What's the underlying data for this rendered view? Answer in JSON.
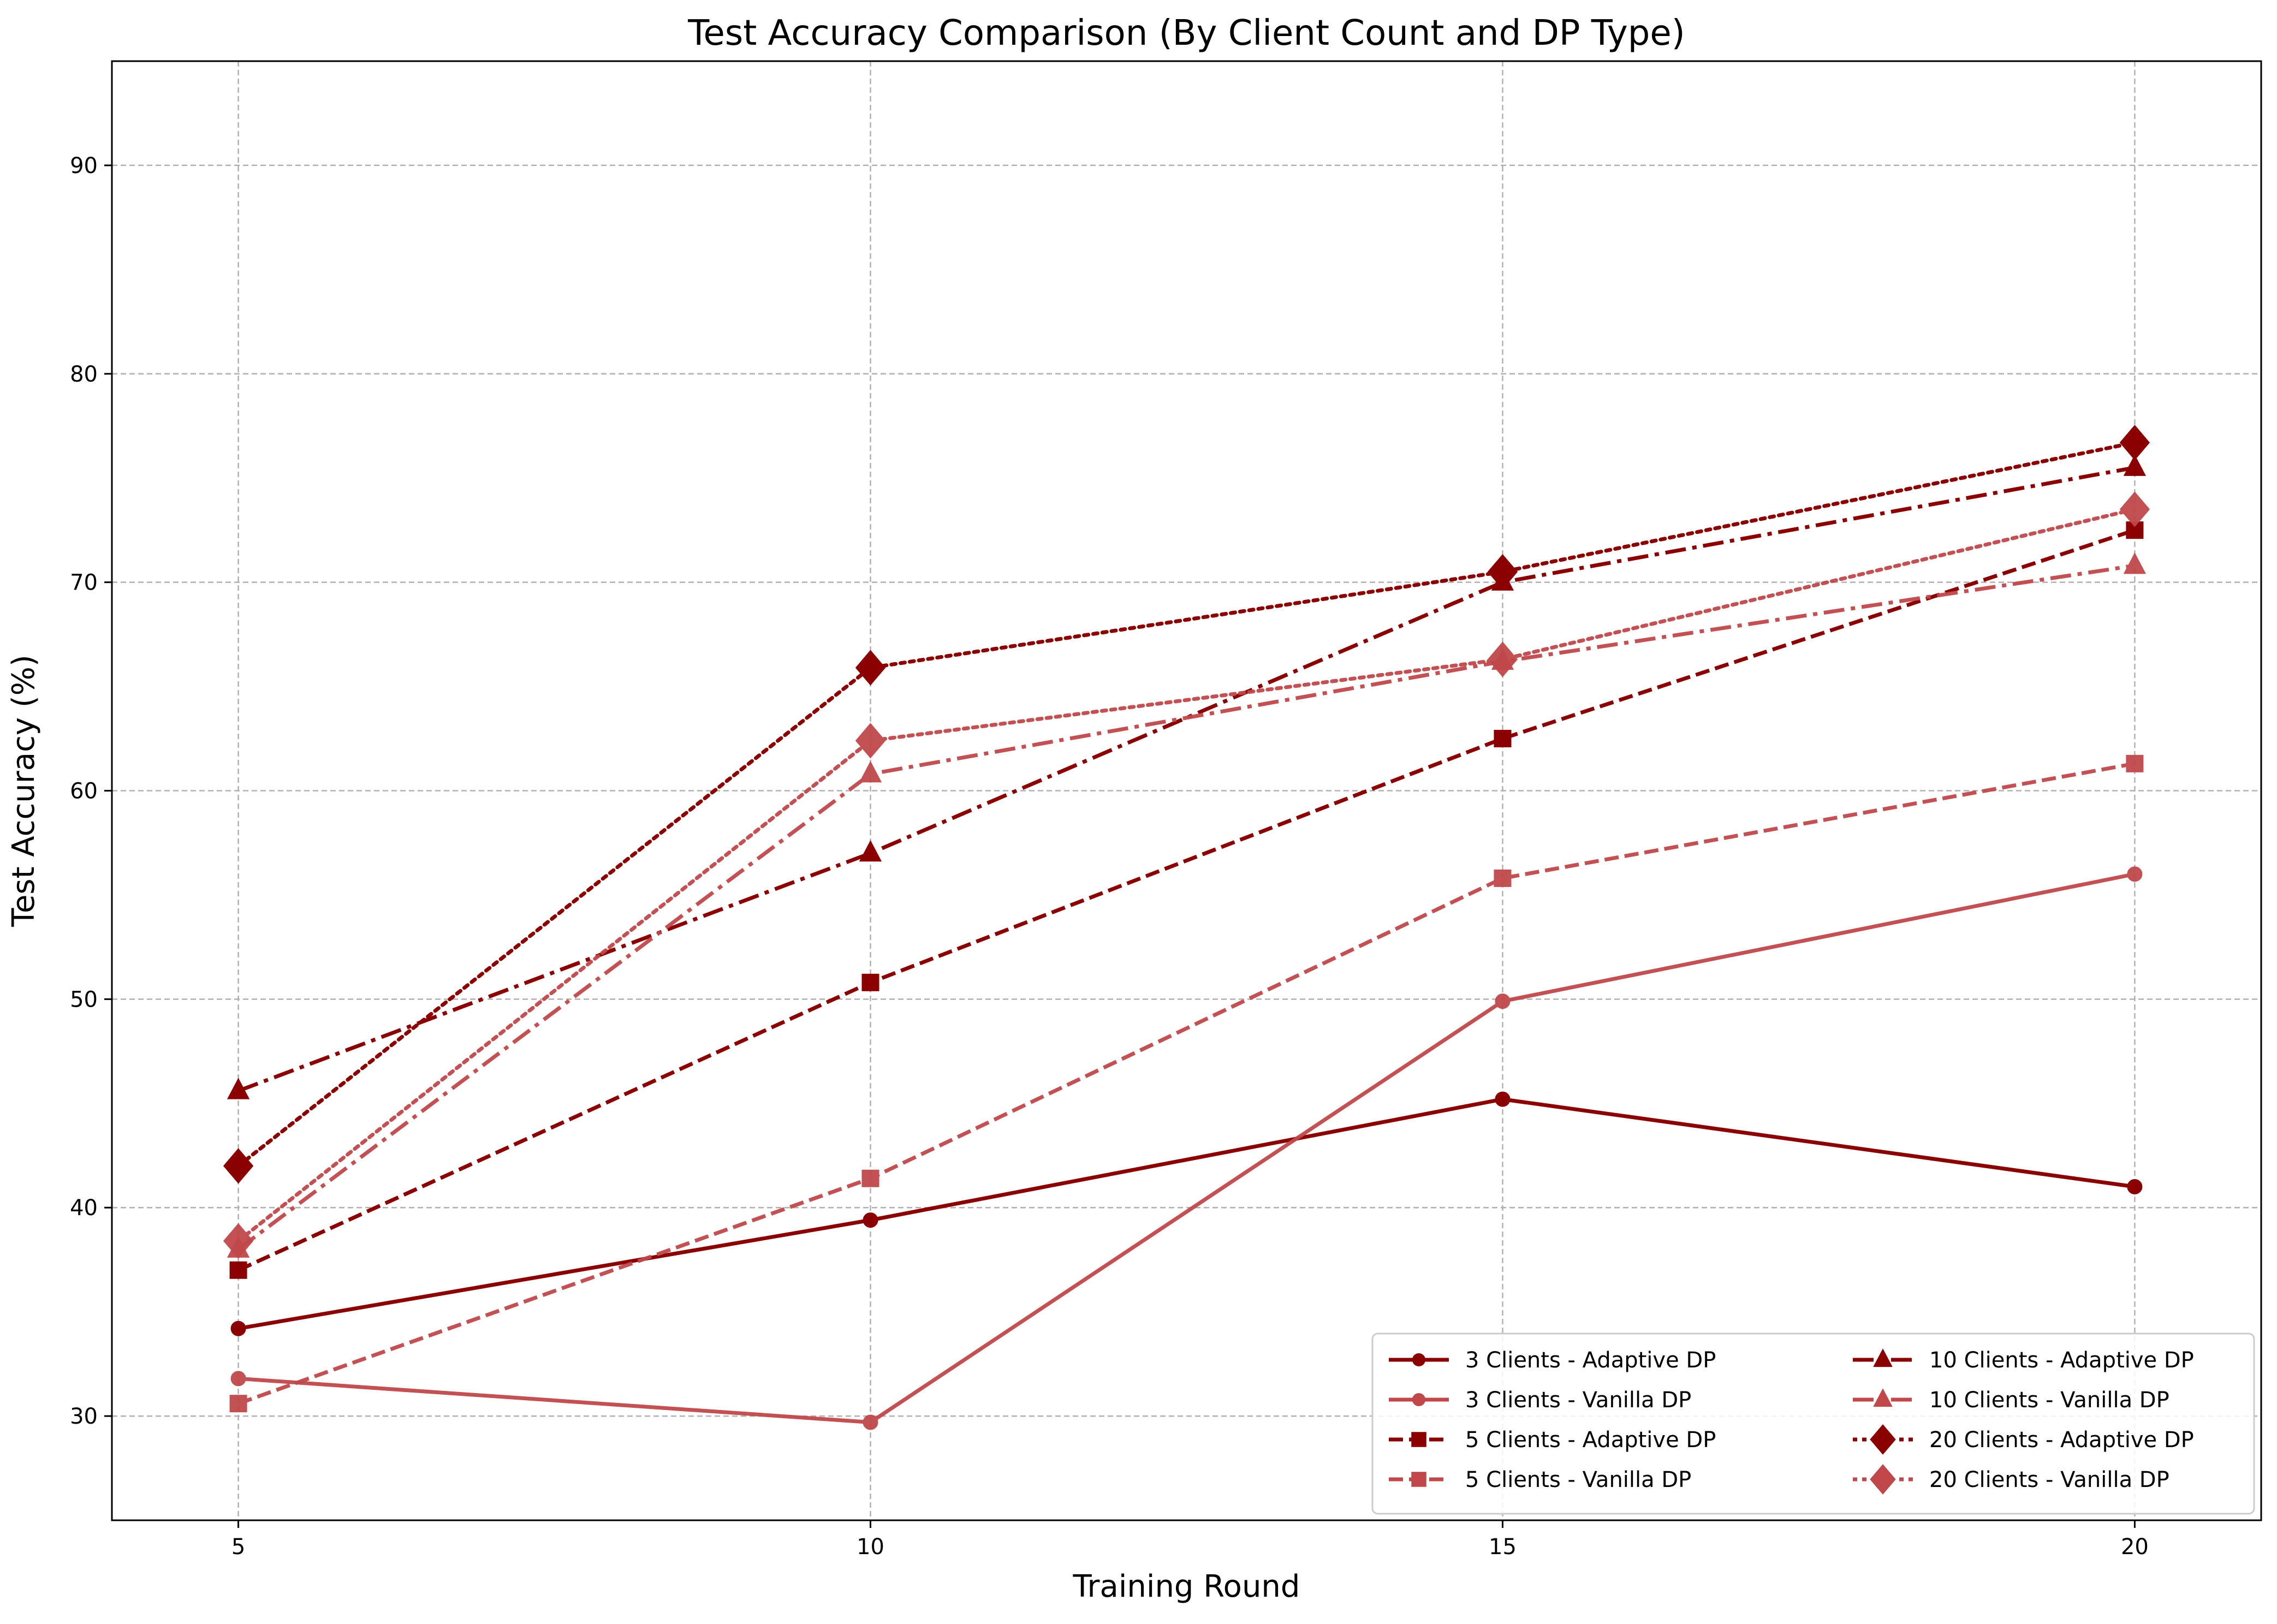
{
  "chart_data": {
    "type": "line",
    "title": "Test Accuracy Comparison (By Client Count and DP Type)",
    "xlabel": "Training Round",
    "ylabel": "Test Accuracy (%)",
    "x": [
      5,
      10,
      15,
      20
    ],
    "xticks": [
      5,
      10,
      15,
      20
    ],
    "yticks": [
      30,
      40,
      50,
      60,
      70,
      80,
      90
    ],
    "xlim": [
      4,
      21
    ],
    "ylim": [
      25,
      95
    ],
    "grid": true,
    "legend_position": "lower-right",
    "colors": {
      "adaptive": "#8b0000",
      "vanilla": "#c0474a"
    },
    "series": [
      {
        "name": "3 Clients - Adaptive DP",
        "values": [
          34.2,
          39.4,
          45.2,
          41.0
        ],
        "dp": "adaptive",
        "marker": "circle",
        "linestyle": "solid"
      },
      {
        "name": "3 Clients - Vanilla DP",
        "values": [
          31.8,
          29.7,
          49.9,
          56.0
        ],
        "dp": "vanilla",
        "marker": "circle",
        "linestyle": "solid"
      },
      {
        "name": "5 Clients - Adaptive DP",
        "values": [
          37.0,
          50.8,
          62.5,
          72.5
        ],
        "dp": "adaptive",
        "marker": "square",
        "linestyle": "dashed"
      },
      {
        "name": "5 Clients - Vanilla DP",
        "values": [
          30.6,
          41.4,
          55.8,
          61.3
        ],
        "dp": "vanilla",
        "marker": "square",
        "linestyle": "dashed"
      },
      {
        "name": "10 Clients - Adaptive DP",
        "values": [
          45.6,
          57.0,
          70.0,
          75.5
        ],
        "dp": "adaptive",
        "marker": "triangle",
        "linestyle": "dashdot"
      },
      {
        "name": "10 Clients - Vanilla DP",
        "values": [
          38.0,
          60.8,
          66.2,
          70.8
        ],
        "dp": "vanilla",
        "marker": "triangle",
        "linestyle": "dashdot"
      },
      {
        "name": "20 Clients - Adaptive DP",
        "values": [
          42.0,
          65.9,
          70.5,
          76.7
        ],
        "dp": "adaptive",
        "marker": "diamond",
        "linestyle": "dotted"
      },
      {
        "name": "20 Clients - Vanilla DP",
        "values": [
          38.4,
          62.4,
          66.3,
          73.5
        ],
        "dp": "vanilla",
        "marker": "diamond",
        "linestyle": "dotted"
      }
    ]
  }
}
